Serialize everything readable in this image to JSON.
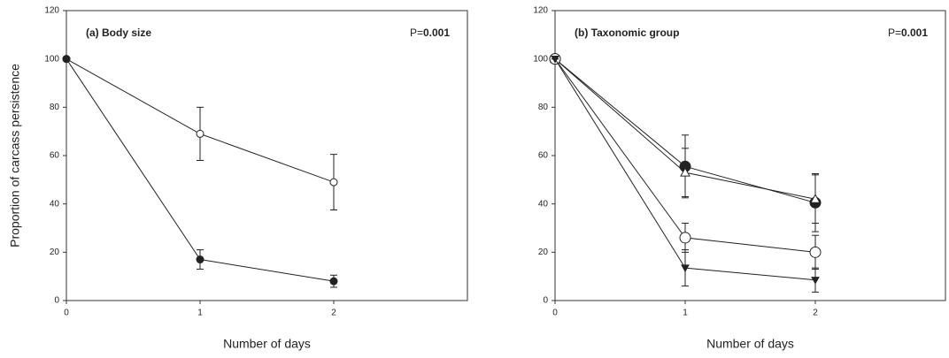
{
  "chart_data": [
    {
      "type": "line",
      "title": "(a) Body size",
      "annotation": {
        "prefix": "P=",
        "value": "0.001"
      },
      "ylabel": "Proportion of carcass persistence",
      "xlabel": "Number of days",
      "x": [
        0,
        1,
        2
      ],
      "xlim": [
        0,
        3
      ],
      "xticks": [
        0,
        1,
        2
      ],
      "ylim": [
        0,
        120
      ],
      "yticks": [
        0,
        20,
        40,
        60,
        80,
        100,
        120
      ],
      "series": [
        {
          "color": "#222222",
          "marker": "circle",
          "filled": false,
          "size": 4,
          "values": [
            100,
            69,
            49
          ],
          "errors": [
            0,
            11,
            11.5
          ]
        },
        {
          "color": "#222222",
          "marker": "circle",
          "filled": true,
          "size": 4,
          "values": [
            100,
            17,
            8
          ],
          "errors": [
            0,
            4,
            2.5
          ]
        }
      ]
    },
    {
      "type": "line",
      "title": "(b) Taxonomic group",
      "annotation": {
        "prefix": "P=",
        "value": "0.001"
      },
      "xlabel": "Number of days",
      "x": [
        0,
        1,
        2
      ],
      "xlim": [
        0,
        3
      ],
      "xticks": [
        0,
        1,
        2
      ],
      "ylim": [
        0,
        120
      ],
      "yticks": [
        0,
        20,
        40,
        60,
        80,
        100,
        120
      ],
      "series": [
        {
          "color": "#222222",
          "marker": "circle",
          "filled": true,
          "size": 6,
          "values": [
            100,
            55.5,
            40.5
          ],
          "errors": [
            0,
            13,
            12
          ]
        },
        {
          "color": "#222222",
          "marker": "triangle-up",
          "filled": false,
          "size": 5,
          "values": [
            100,
            53,
            42
          ],
          "errors": [
            0,
            10,
            10
          ]
        },
        {
          "color": "#222222",
          "marker": "circle",
          "filled": false,
          "size": 6,
          "values": [
            100,
            26,
            20
          ],
          "errors": [
            0,
            6,
            7
          ]
        },
        {
          "color": "#222222",
          "marker": "triangle-down",
          "filled": true,
          "size": 4,
          "values": [
            100,
            13.5,
            8.5
          ],
          "errors": [
            0,
            7.5,
            5
          ]
        }
      ]
    }
  ]
}
